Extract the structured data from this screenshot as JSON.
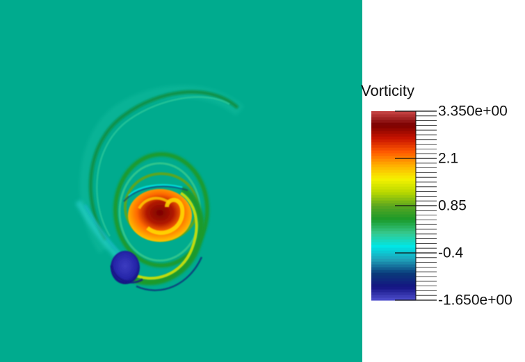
{
  "chart_data": {
    "type": "heatmap",
    "field": "Vorticity",
    "colormap": {
      "name": "Vorticity",
      "range": [
        -1.65,
        3.35
      ],
      "orientation": "vertical",
      "placement": "right",
      "colors": [
        "#4f4fcf",
        "#141482",
        "#0a3a7a",
        "#1f9fb8",
        "#00e6e6",
        "#36c88c",
        "#1a9a2a",
        "#5aa620",
        "#b8d800",
        "#f5f200",
        "#ffb000",
        "#ff5a00",
        "#c81400",
        "#7a0000",
        "#c84646"
      ],
      "ticks": [
        {
          "value": 3.35,
          "label": "3.350e+00"
        },
        {
          "value": 2.1,
          "label": "2.1"
        },
        {
          "value": 0.85,
          "label": "0.85"
        },
        {
          "value": -0.4,
          "label": "-0.4"
        },
        {
          "value": -1.65,
          "label": "-1.650e+00"
        }
      ]
    },
    "background_value": 0.0,
    "grid": false
  }
}
